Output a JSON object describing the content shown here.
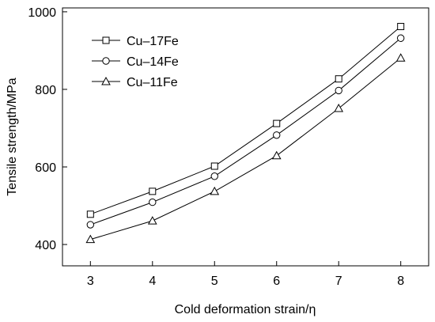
{
  "chart_data": {
    "type": "line",
    "xlabel": "Cold deformation strain/η",
    "ylabel": "Tensile strength/MPa",
    "x": [
      3,
      4,
      5,
      6,
      7,
      8
    ],
    "xlim": [
      2.55,
      8.45
    ],
    "ylim": [
      345,
      1010
    ],
    "x_ticks": [
      "3",
      "4",
      "5",
      "6",
      "7",
      "8"
    ],
    "y_ticks": [
      "400",
      "600",
      "800",
      "1000"
    ],
    "grid": false,
    "legend_position": "top-left",
    "series": [
      {
        "name": "Cu–17Fe",
        "marker": "square",
        "values": [
          478,
          537,
          602,
          712,
          827,
          962
        ]
      },
      {
        "name": "Cu–14Fe",
        "marker": "circle",
        "values": [
          451,
          509,
          576,
          682,
          797,
          932
        ]
      },
      {
        "name": "Cu–11Fe",
        "marker": "triangle",
        "values": [
          413,
          461,
          537,
          629,
          751,
          881
        ]
      }
    ],
    "colors": {
      "line": "#000000",
      "marker_fill": "#ffffff"
    }
  }
}
